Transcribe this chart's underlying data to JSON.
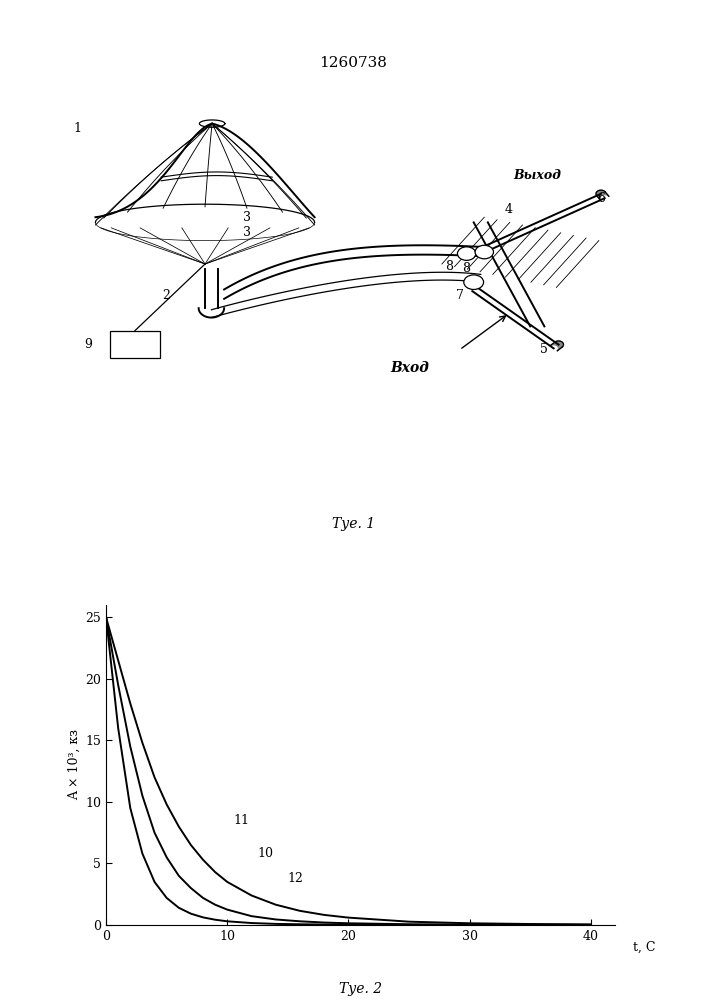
{
  "title": "1260738",
  "fig1_caption": "Τуе. 1",
  "fig2_caption": "Τуе. 2",
  "inlet_label": "Вход",
  "outlet_label": "Выход",
  "ylabel": "A × 10³, кз",
  "xlabel": "t, С",
  "curve_labels": [
    "11",
    "10",
    "12"
  ],
  "t_values": [
    0,
    1,
    2,
    3,
    4,
    5,
    6,
    7,
    8,
    9,
    10,
    12,
    14,
    16,
    18,
    20,
    25,
    30,
    35,
    40
  ],
  "curve11": [
    25,
    21.5,
    18.0,
    14.8,
    12.0,
    9.8,
    8.0,
    6.5,
    5.3,
    4.3,
    3.5,
    2.4,
    1.65,
    1.15,
    0.82,
    0.6,
    0.27,
    0.14,
    0.08,
    0.05
  ],
  "curve10": [
    25,
    19.5,
    14.5,
    10.5,
    7.5,
    5.5,
    4.0,
    3.0,
    2.2,
    1.65,
    1.25,
    0.72,
    0.45,
    0.3,
    0.2,
    0.14,
    0.06,
    0.03,
    0.02,
    0.01
  ],
  "curve12": [
    25,
    16.0,
    9.5,
    5.8,
    3.5,
    2.2,
    1.4,
    0.92,
    0.62,
    0.43,
    0.3,
    0.16,
    0.09,
    0.06,
    0.04,
    0.03,
    0.01,
    0.01,
    0.005,
    0.003
  ],
  "yticks": [
    0,
    5,
    10,
    15,
    20,
    25
  ],
  "xticks": [
    0,
    10,
    20,
    30,
    40
  ],
  "xlim": [
    0,
    42
  ],
  "ylim": [
    0,
    26
  ],
  "bg_color": "#ffffff",
  "line_color": "#000000"
}
